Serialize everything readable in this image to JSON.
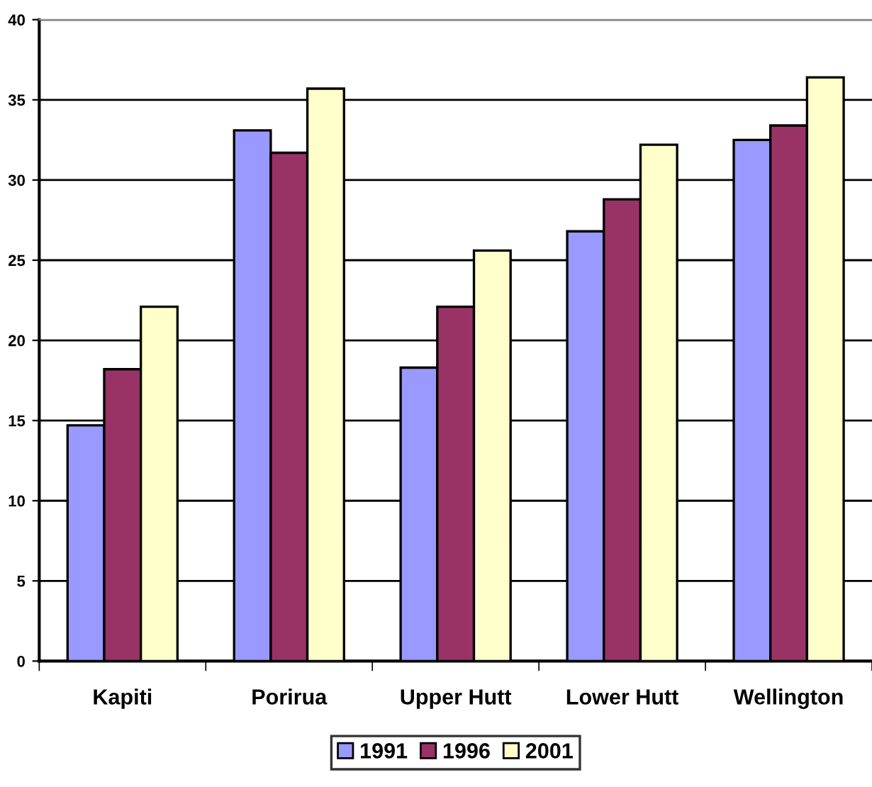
{
  "chart_data": {
    "type": "bar",
    "categories": [
      "Kapiti",
      "Porirua",
      "Upper Hutt",
      "Lower Hutt",
      "Wellington"
    ],
    "series": [
      {
        "name": "1991",
        "color": "#9999ff",
        "values": [
          14.7,
          33.1,
          18.3,
          26.8,
          32.5
        ]
      },
      {
        "name": "1996",
        "color": "#993366",
        "values": [
          18.2,
          31.7,
          22.1,
          28.8,
          33.4
        ]
      },
      {
        "name": "2001",
        "color": "#ffffcc",
        "values": [
          22.1,
          35.7,
          25.6,
          32.2,
          36.4
        ]
      }
    ],
    "ylim": [
      0,
      40
    ],
    "yticks": [
      0,
      5,
      10,
      15,
      20,
      25,
      30,
      35,
      40
    ],
    "grid": "y",
    "legend": "bottom"
  }
}
